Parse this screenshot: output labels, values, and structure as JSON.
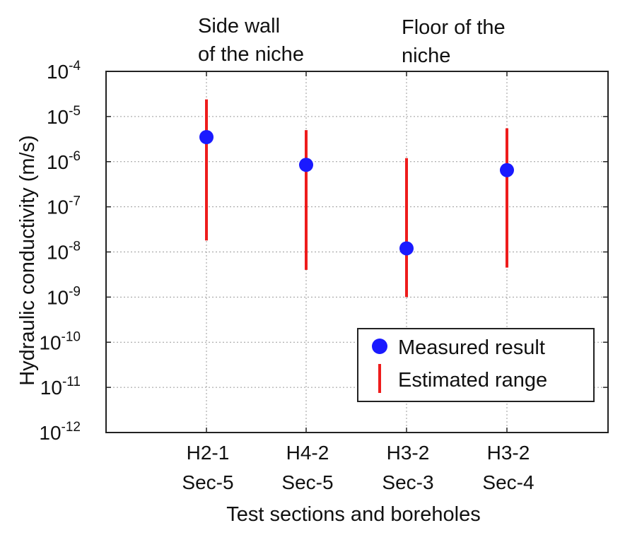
{
  "chart_data": {
    "type": "scatter",
    "yscale": "log",
    "ylim": [
      1e-12,
      0.0001
    ],
    "xlabel": "Test sections and boreholes",
    "ylabel": "Hydraulic conductivity (m/s)",
    "y_ticks": [
      {
        "base": "10",
        "exp": "-4"
      },
      {
        "base": "10",
        "exp": "-5"
      },
      {
        "base": "10",
        "exp": "-6"
      },
      {
        "base": "10",
        "exp": "-7"
      },
      {
        "base": "10",
        "exp": "-8"
      },
      {
        "base": "10",
        "exp": "-9"
      },
      {
        "base": "10",
        "exp": "-10"
      },
      {
        "base": "10",
        "exp": "-11"
      },
      {
        "base": "10",
        "exp": "-12"
      }
    ],
    "categories": [
      {
        "line1": "H2-1",
        "line2": "Sec-5"
      },
      {
        "line1": "H4-2",
        "line2": "Sec-5"
      },
      {
        "line1": "H3-2",
        "line2": "Sec-3"
      },
      {
        "line1": "H3-2",
        "line2": "Sec-4"
      }
    ],
    "series": [
      {
        "name": "Measured result",
        "marker": "circle",
        "color": "#1a1aff",
        "values": [
          3.5e-06,
          8.5e-07,
          1.2e-08,
          6.5e-07
        ]
      },
      {
        "name": "Estimated range",
        "marker": "vertical-bar",
        "color": "#ee1c1c",
        "ranges": [
          [
            1.8e-08,
            2.4e-05
          ],
          [
            4e-09,
            5e-06
          ],
          [
            1e-09,
            1.2e-06
          ],
          [
            4.5e-09,
            5.5e-06
          ]
        ]
      }
    ],
    "annotations": [
      {
        "line1": "Side wall",
        "line2": "of the niche"
      },
      {
        "line1": "Floor of the",
        "line2": "niche"
      }
    ],
    "legend_position": "bottom-right",
    "grid": true
  }
}
